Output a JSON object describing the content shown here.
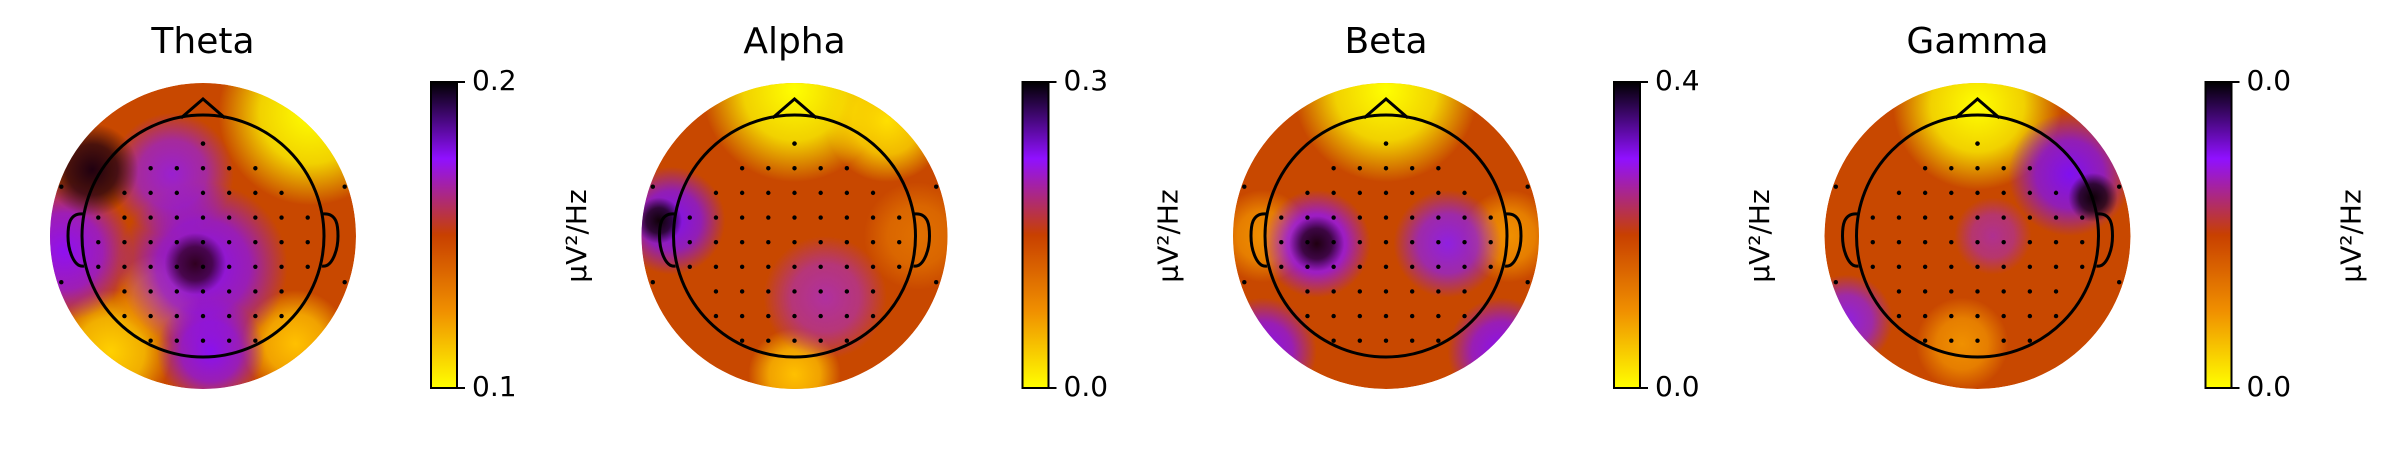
{
  "chart_data": [
    {
      "type": "topomap",
      "title": "Theta",
      "colorbar_label": "µV²/Hz",
      "cticks": [
        0.1,
        0.2
      ]
    },
    {
      "type": "topomap",
      "title": "Alpha",
      "colorbar_label": "µV²/Hz",
      "cticks": [
        {
          "value": 0,
          "label": "0.0"
        },
        0.3
      ]
    },
    {
      "type": "topomap",
      "title": "Beta",
      "colorbar_label": "µV²/Hz",
      "cticks": [
        {
          "value": 0,
          "label": "0.0"
        },
        0.4
      ]
    },
    {
      "type": "topomap",
      "title": "Gamma",
      "colorbar_label": "µV²/Hz",
      "cticks": [
        {
          "value": 1e-05,
          "label": "0.0"
        },
        {
          "value": 4e-05,
          "label": "0.0"
        }
      ]
    }
  ]
}
